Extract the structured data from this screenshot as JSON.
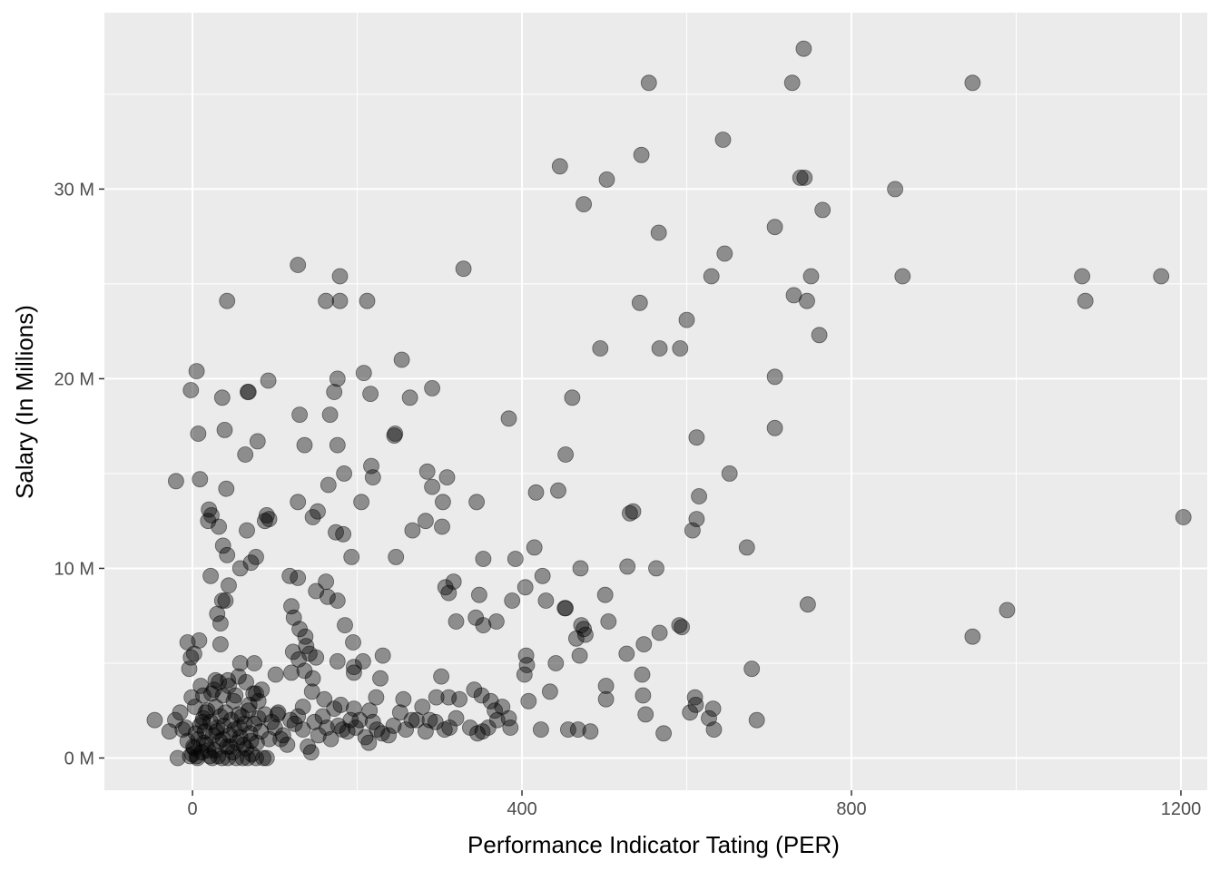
{
  "chart_data": {
    "type": "scatter",
    "title": "",
    "xlabel": "Performance Indicator Tating (PER)",
    "ylabel": "Salary (In Millions)",
    "xlim": [
      -107,
      1232
    ],
    "ylim": [
      -1.7,
      39.3
    ],
    "x_ticks": [
      0,
      400,
      800,
      1200
    ],
    "x_minor_ticks": [
      200,
      600,
      1000
    ],
    "y_ticks": [
      0,
      10,
      20,
      30
    ],
    "y_tick_labels": [
      "0 M",
      "10 M",
      "20 M",
      "30 M"
    ],
    "y_minor_ticks": [
      5,
      15,
      25,
      35
    ],
    "grid": true,
    "legend": "none",
    "colors": {
      "panel": "#ebebeb",
      "grid": "#ffffff",
      "point_fill": "#000000",
      "point_opacity": 0.4
    },
    "points": [
      [
        742,
        37.4
      ],
      [
        554,
        35.6
      ],
      [
        728,
        35.6
      ],
      [
        947,
        35.6
      ],
      [
        644,
        32.6
      ],
      [
        545,
        31.8
      ],
      [
        446,
        31.2
      ],
      [
        738,
        30.6
      ],
      [
        743,
        30.6
      ],
      [
        503,
        30.5
      ],
      [
        853,
        30.0
      ],
      [
        475,
        29.2
      ],
      [
        765,
        28.9
      ],
      [
        566,
        27.7
      ],
      [
        707,
        28.0
      ],
      [
        646,
        26.6
      ],
      [
        128,
        26.0
      ],
      [
        329,
        25.8
      ],
      [
        179,
        25.4
      ],
      [
        630,
        25.4
      ],
      [
        862,
        25.4
      ],
      [
        751,
        25.4
      ],
      [
        1080,
        25.4
      ],
      [
        1176,
        25.4
      ],
      [
        730,
        24.4
      ],
      [
        1084,
        24.1
      ],
      [
        543,
        24.0
      ],
      [
        746,
        24.1
      ],
      [
        42,
        24.1
      ],
      [
        162,
        24.1
      ],
      [
        179,
        24.1
      ],
      [
        212,
        24.1
      ],
      [
        600,
        23.1
      ],
      [
        761,
        22.3
      ],
      [
        567,
        21.6
      ],
      [
        592,
        21.6
      ],
      [
        495,
        21.6
      ],
      [
        254,
        21.0
      ],
      [
        5,
        20.4
      ],
      [
        176,
        20.0
      ],
      [
        208,
        20.3
      ],
      [
        707,
        20.1
      ],
      [
        92,
        19.9
      ],
      [
        -2,
        19.4
      ],
      [
        67,
        19.3
      ],
      [
        68,
        19.3
      ],
      [
        36,
        19.0
      ],
      [
        172,
        19.3
      ],
      [
        216,
        19.2
      ],
      [
        264,
        19.0
      ],
      [
        291,
        19.5
      ],
      [
        461,
        19.0
      ],
      [
        130,
        18.1
      ],
      [
        167,
        18.1
      ],
      [
        384,
        17.9
      ],
      [
        7,
        17.1
      ],
      [
        39,
        17.3
      ],
      [
        707,
        17.4
      ],
      [
        245,
        17.0
      ],
      [
        246,
        17.1
      ],
      [
        612,
        16.9
      ],
      [
        79,
        16.7
      ],
      [
        64,
        16.0
      ],
      [
        136,
        16.5
      ],
      [
        176,
        16.5
      ],
      [
        453,
        16.0
      ],
      [
        9,
        14.7
      ],
      [
        -20,
        14.6
      ],
      [
        41,
        14.2
      ],
      [
        165,
        14.4
      ],
      [
        184,
        15.0
      ],
      [
        217,
        15.4
      ],
      [
        219,
        14.8
      ],
      [
        285,
        15.1
      ],
      [
        291,
        14.3
      ],
      [
        309,
        14.8
      ],
      [
        652,
        15.0
      ],
      [
        417,
        14.0
      ],
      [
        444,
        14.1
      ],
      [
        128,
        13.5
      ],
      [
        205,
        13.5
      ],
      [
        304,
        13.5
      ],
      [
        345,
        13.5
      ],
      [
        531,
        12.9
      ],
      [
        535,
        13.0
      ],
      [
        615,
        13.8
      ],
      [
        19,
        12.5
      ],
      [
        23,
        12.8
      ],
      [
        20,
        13.1
      ],
      [
        32,
        12.2
      ],
      [
        88,
        12.5
      ],
      [
        93,
        12.6
      ],
      [
        90,
        12.8
      ],
      [
        146,
        12.7
      ],
      [
        152,
        13.0
      ],
      [
        174,
        11.9
      ],
      [
        183,
        11.8
      ],
      [
        267,
        12.0
      ],
      [
        283,
        12.5
      ],
      [
        303,
        12.2
      ],
      [
        612,
        12.6
      ],
      [
        607,
        12.0
      ],
      [
        1203,
        12.7
      ],
      [
        37,
        11.2
      ],
      [
        42,
        10.7
      ],
      [
        66,
        12.0
      ],
      [
        77,
        10.6
      ],
      [
        71,
        10.3
      ],
      [
        58,
        10.0
      ],
      [
        193,
        10.6
      ],
      [
        247,
        10.6
      ],
      [
        415,
        11.1
      ],
      [
        353,
        10.5
      ],
      [
        392,
        10.5
      ],
      [
        471,
        10.0
      ],
      [
        528,
        10.1
      ],
      [
        563,
        10.0
      ],
      [
        673,
        11.1
      ],
      [
        22,
        9.6
      ],
      [
        44,
        9.1
      ],
      [
        36,
        8.3
      ],
      [
        40,
        8.3
      ],
      [
        118,
        9.6
      ],
      [
        128,
        9.5
      ],
      [
        150,
        8.8
      ],
      [
        162,
        9.3
      ],
      [
        164,
        8.5
      ],
      [
        176,
        8.3
      ],
      [
        307,
        9.0
      ],
      [
        317,
        9.3
      ],
      [
        311,
        8.7
      ],
      [
        348,
        8.6
      ],
      [
        388,
        8.3
      ],
      [
        404,
        9.0
      ],
      [
        425,
        9.6
      ],
      [
        429,
        8.3
      ],
      [
        452,
        7.9
      ],
      [
        453,
        7.9
      ],
      [
        501,
        8.6
      ],
      [
        747,
        8.1
      ],
      [
        30,
        7.6
      ],
      [
        34,
        7.1
      ],
      [
        120,
        8.0
      ],
      [
        123,
        7.4
      ],
      [
        130,
        6.8
      ],
      [
        137,
        6.4
      ],
      [
        185,
        7.0
      ],
      [
        195,
        6.1
      ],
      [
        320,
        7.2
      ],
      [
        344,
        7.4
      ],
      [
        353,
        7.0
      ],
      [
        369,
        7.2
      ],
      [
        472,
        7.0
      ],
      [
        475,
        6.8
      ],
      [
        505,
        7.2
      ],
      [
        591,
        7.0
      ],
      [
        594,
        6.9
      ],
      [
        466,
        6.3
      ],
      [
        477,
        6.5
      ],
      [
        567,
        6.6
      ],
      [
        8,
        6.2
      ],
      [
        -6,
        6.1
      ],
      [
        2,
        5.5
      ],
      [
        -2,
        5.3
      ],
      [
        34,
        6.0
      ],
      [
        75,
        5.0
      ],
      [
        58,
        5.0
      ],
      [
        122,
        5.6
      ],
      [
        129,
        5.2
      ],
      [
        142,
        5.5
      ],
      [
        138,
        5.9
      ],
      [
        150,
        5.3
      ],
      [
        176,
        5.1
      ],
      [
        196,
        4.8
      ],
      [
        207,
        5.1
      ],
      [
        231,
        5.4
      ],
      [
        405,
        5.4
      ],
      [
        406,
        4.9
      ],
      [
        441,
        5.0
      ],
      [
        470,
        5.4
      ],
      [
        527,
        5.5
      ],
      [
        548,
        6.0
      ],
      [
        546,
        4.4
      ],
      [
        -4,
        4.7
      ],
      [
        32,
        4.0
      ],
      [
        43,
        4.1
      ],
      [
        56,
        4.3
      ],
      [
        65,
        4.0
      ],
      [
        74,
        3.4
      ],
      [
        101,
        4.4
      ],
      [
        120,
        4.5
      ],
      [
        136,
        4.6
      ],
      [
        146,
        4.2
      ],
      [
        196,
        4.5
      ],
      [
        228,
        4.2
      ],
      [
        302,
        4.3
      ],
      [
        311,
        3.2
      ],
      [
        296,
        3.2
      ],
      [
        403,
        4.4
      ],
      [
        502,
        3.8
      ],
      [
        502,
        3.1
      ],
      [
        547,
        3.3
      ],
      [
        434,
        3.5
      ],
      [
        610,
        3.2
      ],
      [
        611,
        2.8
      ],
      [
        632,
        2.6
      ],
      [
        679,
        4.7
      ],
      [
        685,
        2.0
      ],
      [
        -1,
        3.2
      ],
      [
        13,
        3.3
      ],
      [
        26,
        3.6
      ],
      [
        37,
        3.3
      ],
      [
        52,
        3.3
      ],
      [
        77,
        3.4
      ],
      [
        80,
        3.0
      ],
      [
        103,
        2.3
      ],
      [
        134,
        2.7
      ],
      [
        145,
        3.5
      ],
      [
        160,
        3.1
      ],
      [
        180,
        2.8
      ],
      [
        196,
        2.6
      ],
      [
        215,
        2.5
      ],
      [
        223,
        3.2
      ],
      [
        256,
        3.1
      ],
      [
        279,
        2.7
      ],
      [
        288,
        2.0
      ],
      [
        324,
        3.1
      ],
      [
        342,
        3.6
      ],
      [
        351,
        3.3
      ],
      [
        362,
        3.0
      ],
      [
        367,
        2.5
      ],
      [
        376,
        2.7
      ],
      [
        386,
        1.6
      ],
      [
        408,
        3.0
      ],
      [
        456,
        1.5
      ],
      [
        468,
        1.5
      ],
      [
        483,
        1.4
      ],
      [
        423,
        1.5
      ],
      [
        550,
        2.3
      ],
      [
        572,
        1.3
      ],
      [
        604,
        2.4
      ],
      [
        627,
        2.1
      ],
      [
        633,
        1.5
      ],
      [
        -46,
        2.0
      ],
      [
        -28,
        1.4
      ],
      [
        -21,
        2.0
      ],
      [
        -15,
        2.4
      ],
      [
        -8,
        1.6
      ],
      [
        -12,
        1.5
      ],
      [
        -6,
        0.9
      ],
      [
        -18,
        0.0
      ],
      [
        -3,
        0.1
      ],
      [
        0,
        0.2
      ],
      [
        2,
        0.5
      ],
      [
        5,
        0.1
      ],
      [
        7,
        1.0
      ],
      [
        9,
        1.7
      ],
      [
        11,
        0.3
      ],
      [
        13,
        2.1
      ],
      [
        15,
        1.4
      ],
      [
        17,
        0.7
      ],
      [
        18,
        2.5
      ],
      [
        21,
        0.1
      ],
      [
        22,
        1.9
      ],
      [
        25,
        1.2
      ],
      [
        27,
        0.4
      ],
      [
        28,
        2.7
      ],
      [
        30,
        1.6
      ],
      [
        33,
        0.9
      ],
      [
        34,
        2.2
      ],
      [
        36,
        0.0
      ],
      [
        38,
        1.7
      ],
      [
        40,
        2.4
      ],
      [
        42,
        0.6
      ],
      [
        45,
        1.2
      ],
      [
        47,
        2.0
      ],
      [
        49,
        0.3
      ],
      [
        51,
        1.5
      ],
      [
        54,
        0.8
      ],
      [
        56,
        2.3
      ],
      [
        58,
        1.1
      ],
      [
        61,
        0.0
      ],
      [
        63,
        1.8
      ],
      [
        65,
        0.5
      ],
      [
        68,
        2.5
      ],
      [
        70,
        1.3
      ],
      [
        72,
        0.2
      ],
      [
        75,
        1.8
      ],
      [
        78,
        0.8
      ],
      [
        80,
        2.1
      ],
      [
        83,
        1.4
      ],
      [
        86,
        0.0
      ],
      [
        88,
        2.3
      ],
      [
        93,
        1.0
      ],
      [
        96,
        1.9
      ],
      [
        100,
        1.6
      ],
      [
        104,
        2.4
      ],
      [
        110,
        1.2
      ],
      [
        115,
        0.7
      ],
      [
        119,
        2.0
      ],
      [
        124,
        1.8
      ],
      [
        128,
        2.2
      ],
      [
        134,
        1.5
      ],
      [
        140,
        0.6
      ],
      [
        144,
        0.3
      ],
      [
        148,
        1.9
      ],
      [
        153,
        1.2
      ],
      [
        158,
        2.2
      ],
      [
        163,
        1.6
      ],
      [
        168,
        1.0
      ],
      [
        172,
        2.6
      ],
      [
        177,
        1.7
      ],
      [
        182,
        1.5
      ],
      [
        188,
        1.4
      ],
      [
        192,
        2.0
      ],
      [
        198,
        1.6
      ],
      [
        203,
        2.0
      ],
      [
        210,
        1.1
      ],
      [
        214,
        0.8
      ],
      [
        219,
        1.9
      ],
      [
        224,
        1.5
      ],
      [
        230,
        1.3
      ],
      [
        238,
        1.2
      ],
      [
        244,
        1.7
      ],
      [
        252,
        2.4
      ],
      [
        259,
        1.5
      ],
      [
        266,
        2.0
      ],
      [
        272,
        2.0
      ],
      [
        283,
        1.4
      ],
      [
        295,
        1.9
      ],
      [
        306,
        1.5
      ],
      [
        312,
        1.6
      ],
      [
        320,
        2.1
      ],
      [
        337,
        1.6
      ],
      [
        346,
        1.3
      ],
      [
        352,
        1.4
      ],
      [
        359,
        1.6
      ],
      [
        370,
        2.0
      ],
      [
        384,
        2.1
      ],
      [
        3,
        2.7
      ],
      [
        10,
        3.8
      ],
      [
        16,
        2.4
      ],
      [
        23,
        3.4
      ],
      [
        28,
        4.1
      ],
      [
        44,
        3.8
      ],
      [
        50,
        3.0
      ],
      [
        60,
        2.2
      ],
      [
        69,
        2.8
      ],
      [
        84,
        3.6
      ],
      [
        1,
        0.6
      ],
      [
        4,
        1.3
      ],
      [
        6,
        0.0
      ],
      [
        12,
        1.9
      ],
      [
        14,
        0.8
      ],
      [
        19,
        0.4
      ],
      [
        24,
        0.0
      ],
      [
        29,
        1.4
      ],
      [
        31,
        0.1
      ],
      [
        37,
        1.0
      ],
      [
        43,
        0.0
      ],
      [
        46,
        0.6
      ],
      [
        53,
        0.0
      ],
      [
        57,
        1.6
      ],
      [
        62,
        0.7
      ],
      [
        67,
        0.0
      ],
      [
        71,
        0.9
      ],
      [
        77,
        0.0
      ],
      [
        90,
        0.0
      ],
      [
        107,
        1.0
      ],
      [
        947,
        6.4
      ],
      [
        989,
        7.8
      ]
    ]
  }
}
